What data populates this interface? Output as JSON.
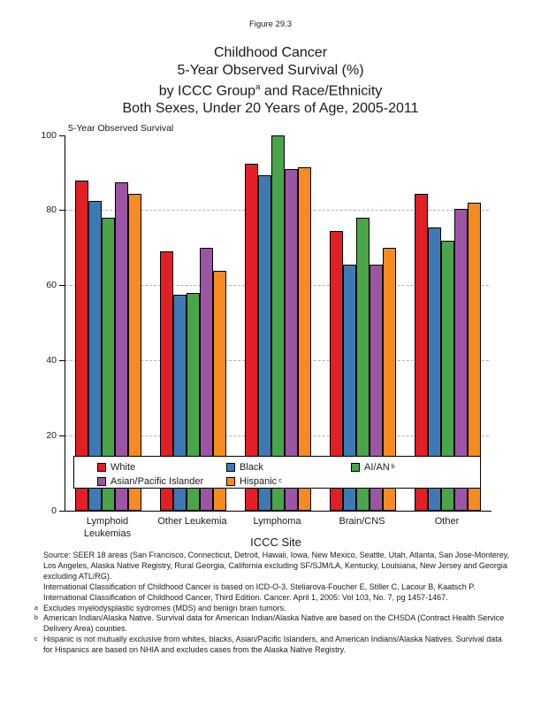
{
  "header": {
    "figure_label": "Figure 29.3"
  },
  "title": {
    "line1": "Childhood Cancer",
    "line2": "5-Year Observed Survival (%)",
    "line3_pre": "by ICCC Group",
    "line3_sup": "a",
    "line3_post": " and Race/Ethnicity",
    "line4": "Both Sexes, Under 20 Years of Age, 2005-2011"
  },
  "chart_data": {
    "type": "bar",
    "title": "Childhood Cancer 5-Year Observed Survival (%) by ICCC Group and Race/Ethnicity, Both Sexes, Under 20 Years of Age, 2005-2011",
    "categories": [
      "Lymphoid Leukemias",
      "Other Leukemia",
      "Lymphoma",
      "Brain/CNS",
      "Other"
    ],
    "series": [
      {
        "name": "White",
        "sup": "",
        "color": "#e21e26",
        "values": [
          88,
          69,
          92.5,
          74.5,
          84.5
        ]
      },
      {
        "name": "Black",
        "sup": "",
        "color": "#3d7ab5",
        "values": [
          82.5,
          57.5,
          89.5,
          65.5,
          75.5
        ]
      },
      {
        "name": "AI/AN",
        "sup": "b",
        "color": "#4aa54a",
        "values": [
          78,
          58,
          100,
          78,
          72
        ]
      },
      {
        "name": "Asian/Pacific Islander",
        "sup": "",
        "color": "#9c55a5",
        "values": [
          87.5,
          70,
          91,
          65.5,
          80.5
        ]
      },
      {
        "name": "Hispanic",
        "sup": "c",
        "color": "#f68b1f",
        "values": [
          84.5,
          64,
          91.5,
          70,
          82
        ]
      }
    ],
    "ylabel": "5-Year Observed Survival",
    "xlabel": "ICCC Site",
    "ylim": [
      0,
      100
    ],
    "yticks": [
      0,
      20,
      40,
      60,
      80,
      100
    ],
    "grid": "horizontal dashed gridlines at 20, 40, 60, 80",
    "legend_position": "inside bottom of plot area",
    "colors": {
      "gridline": "#b0b0b0",
      "bar_outline": "#000000"
    }
  },
  "footnotes": [
    {
      "marker": "",
      "text": "Source: SEER 18 areas (San Francisco, Connecticut, Detroit, Hawaii, Iowa, New Mexico, Seattle, Utah, Atlanta, San Jose-Monterey, Los Angeles, Alaska Native Registry, Rural Georgia, California excluding SF/SJM/LA, Kentucky, Louisiana, New Jersey and Georgia excluding ATL/RG)."
    },
    {
      "marker": "",
      "text": "International Classification of Childhood Cancer is based on ICD-O-3.  Steliarova-Foucher E, Stiller C, Lacour B, Kaatsch P. International Classification of Childhood Cancer, Third Edition. Cancer. April 1, 2005: Vol 103, No. 7, pg 1457-1467."
    },
    {
      "marker": "a",
      "text": "Excludes myelodysplastic sydromes (MDS) and benign brain tumors."
    },
    {
      "marker": "b",
      "text": "American Indian/Alaska Native. Survival data for American Indian/Alaska Native are based on the CHSDA (Contract Health Service Delivery Area) counties."
    },
    {
      "marker": "c",
      "text": "Hispanic is not mutually exclusive from whites, blacks, Asian/Pacific Islanders, and American Indians/Alaska Natives. Survival data for Hispanics are based on NHIA and excludes cases from the Alaska Native Registry."
    }
  ]
}
